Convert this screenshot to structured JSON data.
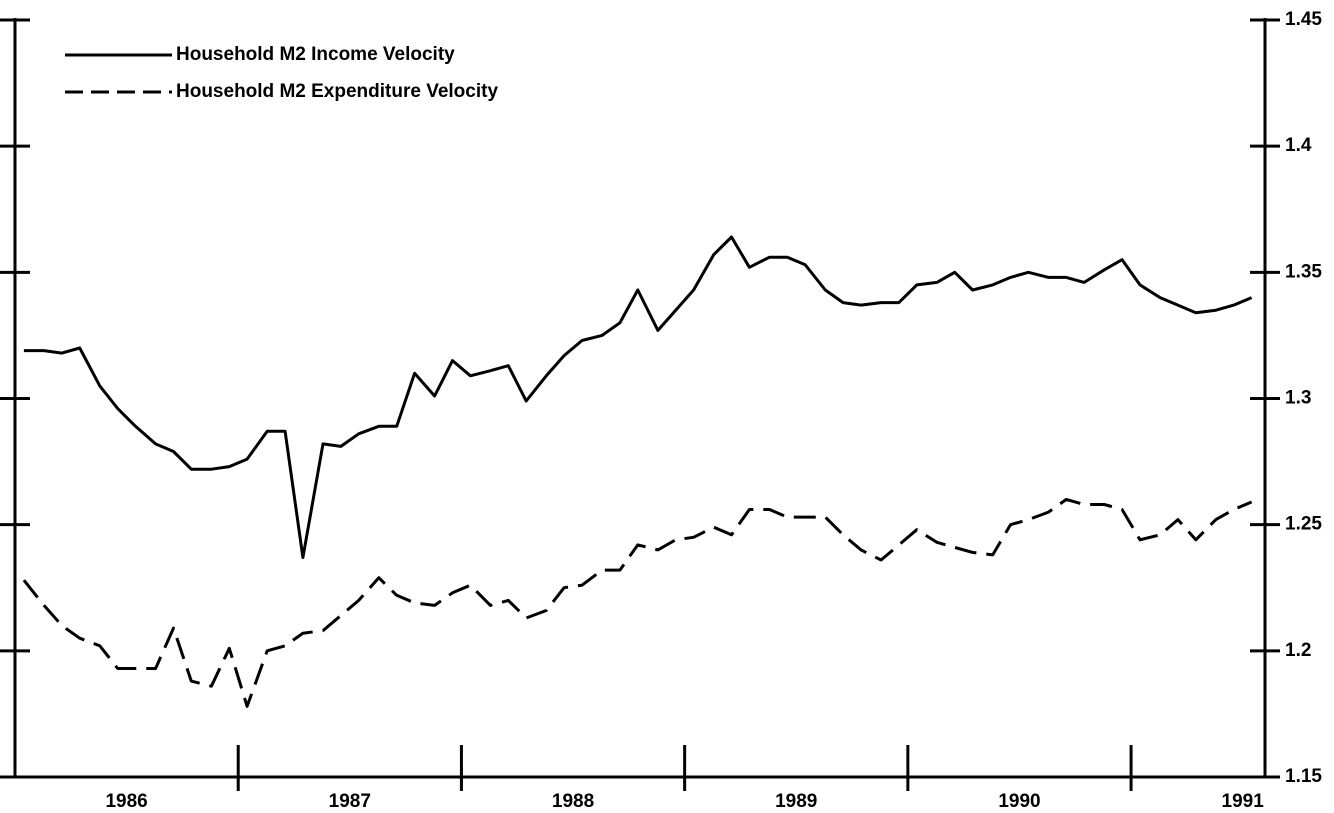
{
  "chart_data": {
    "type": "line",
    "x": [
      1986.04,
      1986.13,
      1986.21,
      1986.29,
      1986.38,
      1986.46,
      1986.54,
      1986.63,
      1986.71,
      1986.79,
      1986.88,
      1986.96,
      1987.04,
      1987.13,
      1987.21,
      1987.29,
      1987.38,
      1987.46,
      1987.54,
      1987.63,
      1987.71,
      1987.79,
      1987.88,
      1987.96,
      1988.04,
      1988.13,
      1988.21,
      1988.29,
      1988.38,
      1988.46,
      1988.54,
      1988.63,
      1988.71,
      1988.79,
      1988.88,
      1988.96,
      1989.04,
      1989.13,
      1989.21,
      1989.29,
      1989.38,
      1989.46,
      1989.54,
      1989.63,
      1989.71,
      1989.79,
      1989.88,
      1989.96,
      1990.04,
      1990.13,
      1990.21,
      1990.29,
      1990.38,
      1990.46,
      1990.54,
      1990.63,
      1990.71,
      1990.79,
      1990.88,
      1990.96,
      1991.04,
      1991.13,
      1991.21,
      1991.29,
      1991.38,
      1991.46,
      1991.54
    ],
    "series": [
      {
        "name": "Household M2 Income Velocity",
        "color": "#000000",
        "dash": false,
        "values": [
          1.319,
          1.319,
          1.318,
          1.32,
          1.305,
          1.296,
          1.289,
          1.282,
          1.279,
          1.272,
          1.272,
          1.273,
          1.276,
          1.287,
          1.287,
          1.237,
          1.282,
          1.281,
          1.286,
          1.289,
          1.289,
          1.31,
          1.301,
          1.315,
          1.309,
          1.311,
          1.313,
          1.299,
          1.309,
          1.317,
          1.323,
          1.325,
          1.33,
          1.343,
          1.327,
          1.335,
          1.343,
          1.357,
          1.364,
          1.352,
          1.356,
          1.356,
          1.353,
          1.343,
          1.338,
          1.337,
          1.338,
          1.338,
          1.345,
          1.346,
          1.35,
          1.343,
          1.345,
          1.348,
          1.35,
          1.348,
          1.348,
          1.346,
          1.351,
          1.355,
          1.345,
          1.34,
          1.337,
          1.334,
          1.335,
          1.337,
          1.34
        ]
      },
      {
        "name": "Household M2 Expenditure Velocity",
        "color": "#000000",
        "dash": true,
        "values": [
          1.228,
          1.218,
          1.21,
          1.205,
          1.202,
          1.193,
          1.193,
          1.193,
          1.209,
          1.188,
          1.186,
          1.201,
          1.178,
          1.2,
          1.202,
          1.207,
          1.208,
          1.214,
          1.22,
          1.229,
          1.222,
          1.219,
          1.218,
          1.223,
          1.226,
          1.218,
          1.22,
          1.213,
          1.216,
          1.225,
          1.226,
          1.232,
          1.232,
          1.242,
          1.24,
          1.244,
          1.245,
          1.249,
          1.246,
          1.256,
          1.256,
          1.253,
          1.253,
          1.253,
          1.246,
          1.24,
          1.236,
          1.242,
          1.248,
          1.243,
          1.241,
          1.239,
          1.238,
          1.25,
          1.252,
          1.255,
          1.26,
          1.258,
          1.258,
          1.256,
          1.244,
          1.246,
          1.252,
          1.244,
          1.252,
          1.256,
          1.259
        ]
      }
    ],
    "year_labels": [
      "1986",
      "1987",
      "1988",
      "1989",
      "1990",
      "1991"
    ],
    "xlim": [
      1986,
      1991.6
    ],
    "xticks": [
      1987,
      1988,
      1989,
      1990,
      1991
    ],
    "ylim": [
      1.15,
      1.45
    ],
    "yticks": [
      1.15,
      1.2,
      1.25,
      1.3,
      1.35,
      1.4,
      1.45
    ],
    "y_axis_side": "right"
  }
}
